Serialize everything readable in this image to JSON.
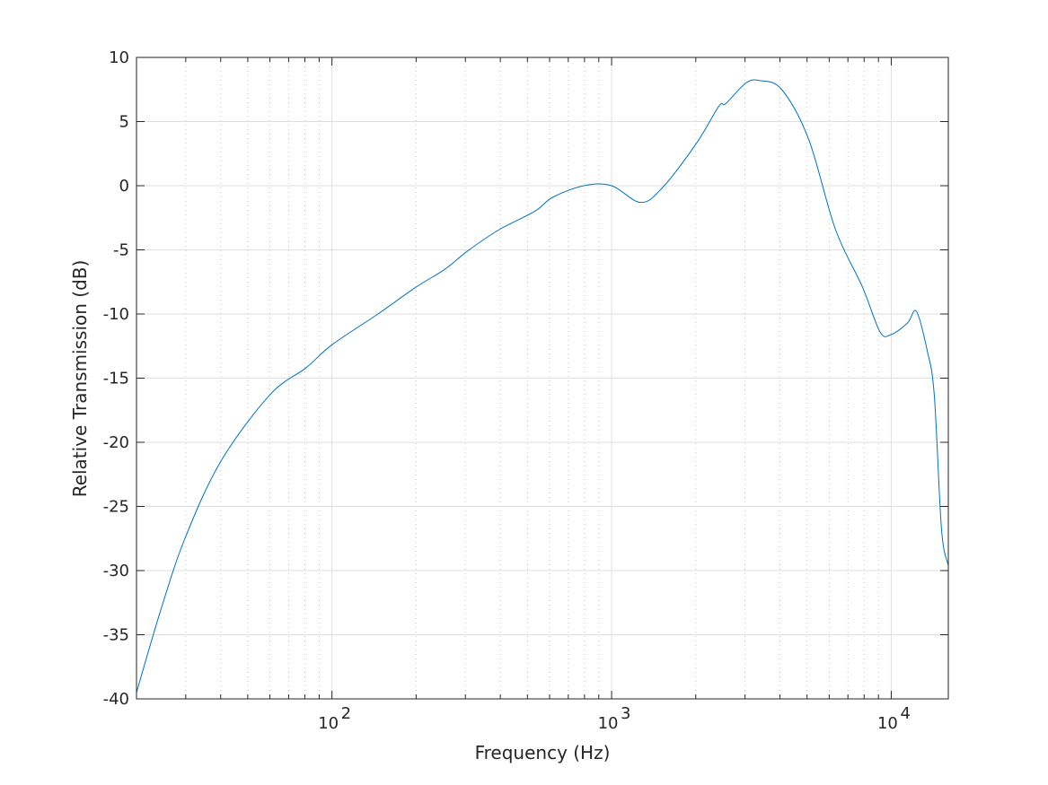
{
  "chart_data": {
    "type": "line",
    "title": "",
    "xlabel": "Frequency (Hz)",
    "ylabel": "Relative Transmission (dB)",
    "xscale": "log",
    "xlim": [
      20,
      16000
    ],
    "ylim": [
      -40,
      10
    ],
    "grid": true,
    "minor_grid": true,
    "line_color": "#0072BD",
    "x_ticks": [
      {
        "value": 100,
        "base": "10",
        "exp": "2"
      },
      {
        "value": 1000,
        "base": "10",
        "exp": "3"
      },
      {
        "value": 10000,
        "base": "10",
        "exp": "4"
      }
    ],
    "y_ticks": [
      -40,
      -35,
      -30,
      -25,
      -20,
      -15,
      -10,
      -5,
      0,
      5,
      10
    ],
    "series": [
      {
        "x": [
          20,
          24.4,
          29.8,
          40,
          60,
          80.7,
          100,
          146,
          200,
          254,
          305,
          398,
          531,
          616,
          796,
          1000,
          1267,
          1513,
          2010,
          2420,
          2560,
          3020,
          3375,
          4057,
          5070,
          6316,
          7890,
          9120,
          10000,
          11430,
          12310,
          13430,
          14250,
          15130,
          16000
        ],
        "y": [
          -39.5,
          -33.1,
          -27.5,
          -21.5,
          -16.3,
          -14.2,
          -12.4,
          -10,
          -7.9,
          -6.5,
          -5.1,
          -3.4,
          -2,
          -0.9,
          0,
          0,
          -1.3,
          -0.2,
          3.3,
          6.2,
          6.4,
          8,
          8.2,
          7.5,
          3.6,
          -3.4,
          -7.9,
          -11.4,
          -11.6,
          -10.7,
          -9.8,
          -12.8,
          -16.3,
          -26.8,
          -29.6
        ]
      }
    ]
  }
}
